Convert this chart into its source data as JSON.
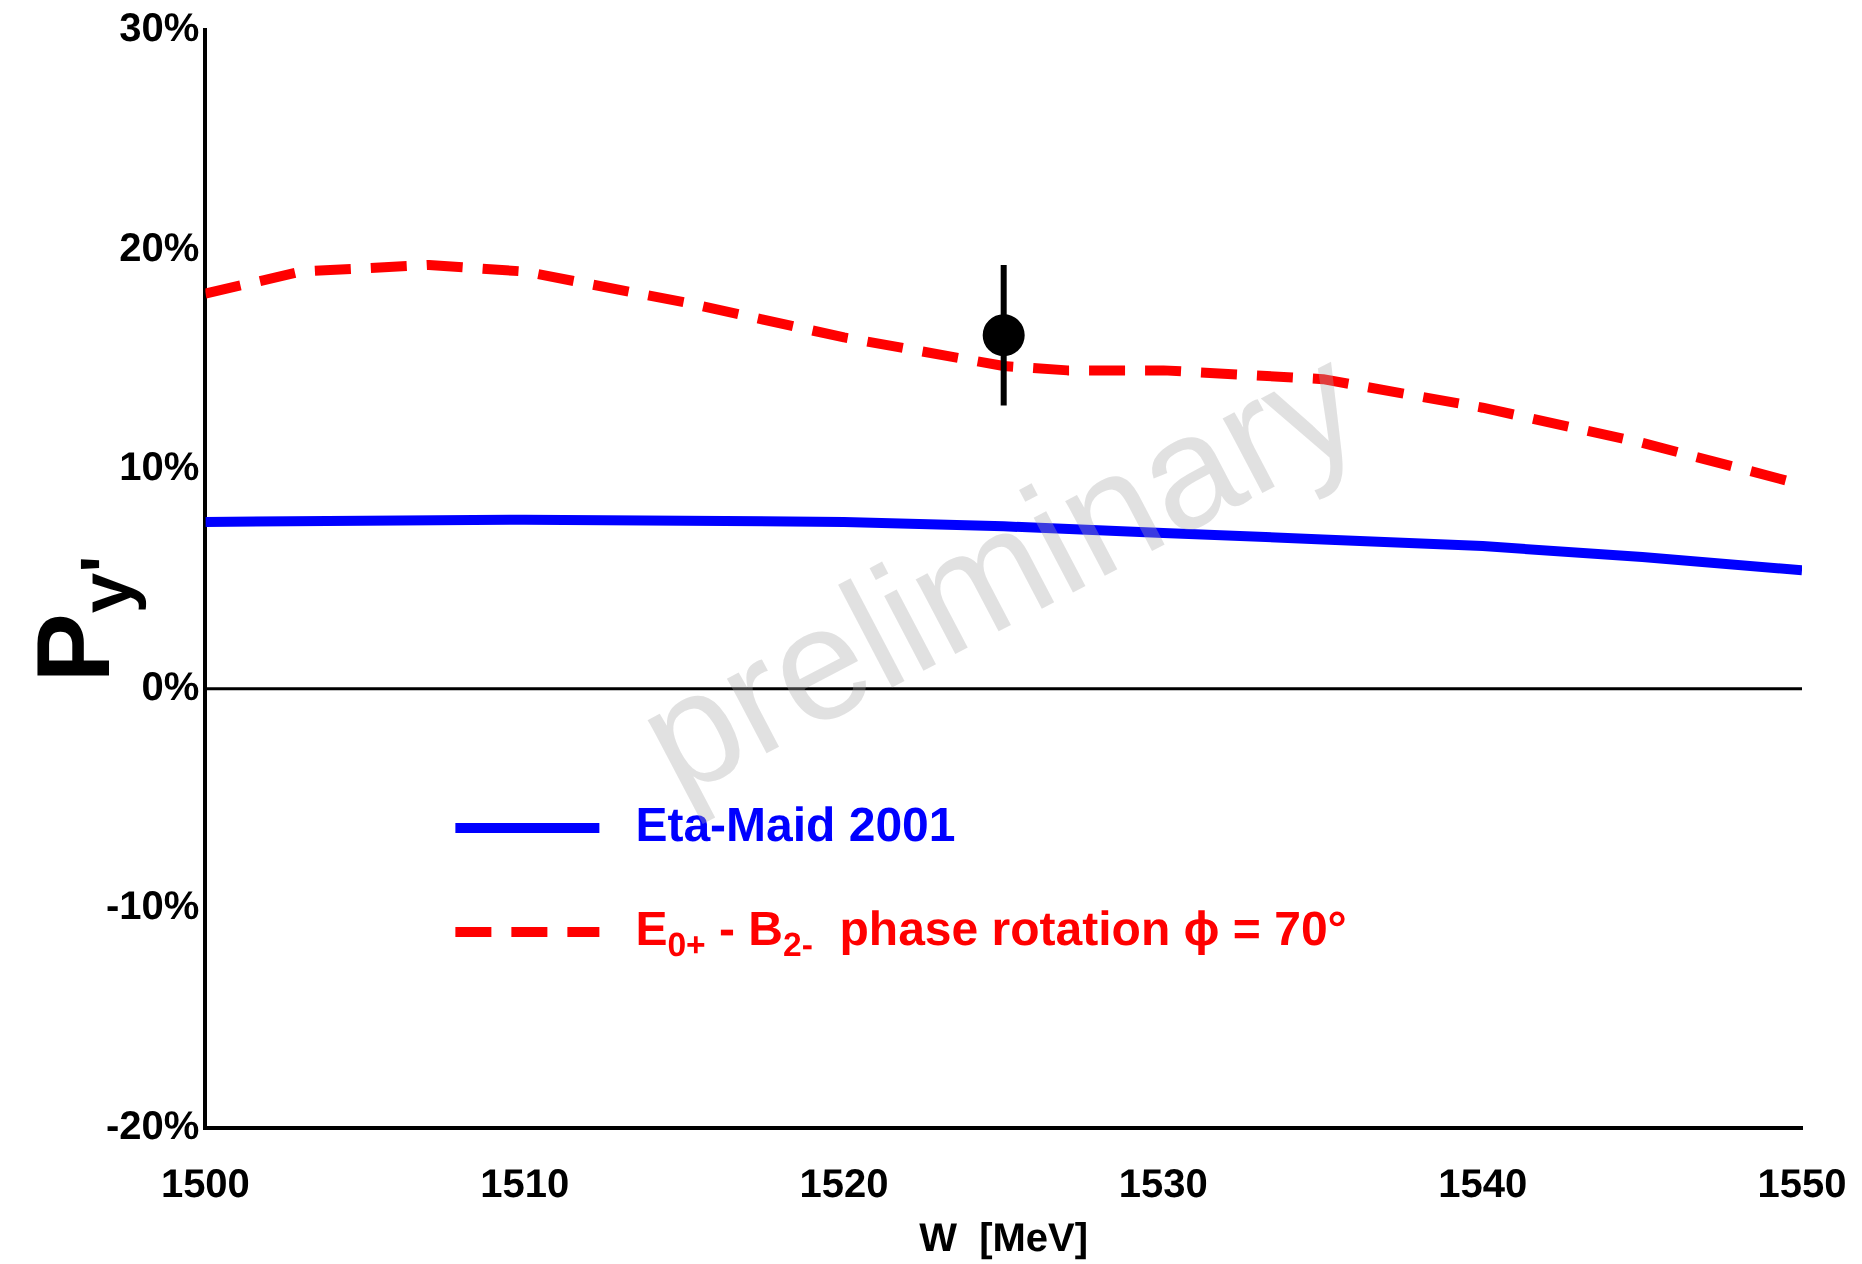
{
  "chart_data": {
    "type": "line",
    "xlabel": "W  [MeV]",
    "ylabel": "P$_{y'}$",
    "xlim": [
      1500,
      1550
    ],
    "xticks": [
      1500,
      1510,
      1520,
      1530,
      1540,
      1550
    ],
    "ylim": [
      -20,
      30
    ],
    "yticks": [
      {
        "value": -20,
        "label": "-20%"
      },
      {
        "value": -10,
        "label": "-10%"
      },
      {
        "value": 0,
        "label": "0%"
      },
      {
        "value": 10,
        "label": "10%"
      },
      {
        "value": 20,
        "label": "20%"
      },
      {
        "value": 30,
        "label": "30%"
      }
    ],
    "grid": false,
    "legend": "bottom left",
    "marker": "none",
    "ref_lines": [
      {
        "axis": "y",
        "value": 0,
        "color": "#000000"
      }
    ],
    "annotations": [
      "preliminary"
    ],
    "series": [
      {
        "name": "Eta-Maid 2001",
        "color": "#0000ff",
        "line_style": "solid",
        "x": [
          1500,
          1510,
          1520,
          1525,
          1530,
          1535,
          1540,
          1545,
          1550
        ],
        "values": [
          7.6,
          7.7,
          7.6,
          7.4,
          7.1,
          6.8,
          6.5,
          6.0,
          5.4
        ]
      },
      {
        "name": "E$_{0+}$ - B$_{2-}$  phase rotation ϕ = 70°",
        "color": "#ff0000",
        "line_style": "dashed",
        "x": [
          1500,
          1503,
          1507,
          1510,
          1515,
          1520,
          1525,
          1527,
          1530,
          1535,
          1540,
          1545,
          1550
        ],
        "values": [
          18.0,
          19.0,
          19.3,
          19.0,
          17.6,
          16.0,
          14.7,
          14.5,
          14.5,
          14.1,
          12.8,
          11.2,
          9.3
        ]
      },
      {
        "type": "scatter",
        "color": "#000000",
        "marker": "circle",
        "x": [
          1525
        ],
        "values": [
          16.1
        ],
        "errors": [
          [
            12.9,
            19.3
          ]
        ]
      }
    ]
  }
}
